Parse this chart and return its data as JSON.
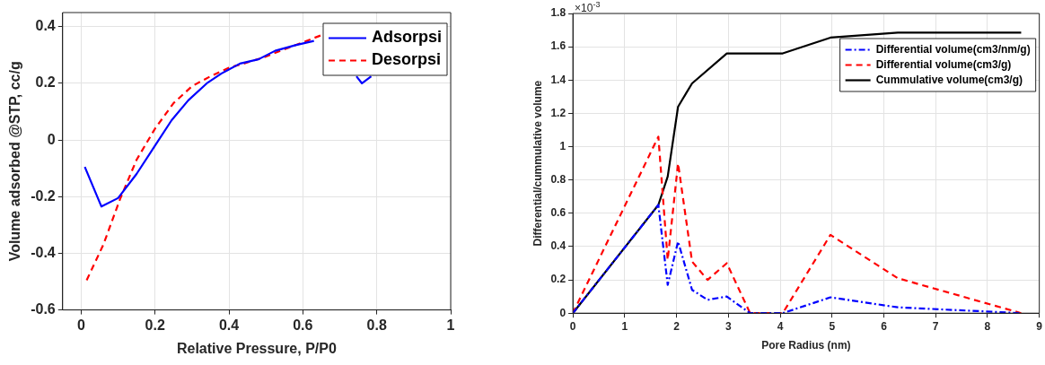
{
  "chart_data": [
    {
      "type": "line",
      "xlabel": "Relative Pressure, P/P0",
      "ylabel": "Volume adsorbed @STP, cc/g",
      "xlim": [
        -0.05,
        1
      ],
      "xticks": [
        0,
        0.2,
        0.4,
        0.6,
        0.8,
        1
      ],
      "ylim": [
        -0.6,
        0.45
      ],
      "yticks": [
        -0.6,
        -0.4,
        -0.2,
        0,
        0.2,
        0.4
      ],
      "grid": true,
      "legend": "top right",
      "marker": "none",
      "series": [
        {
          "name": "Adsorpsi",
          "color": "#0000ff",
          "line_style": "solid",
          "x": [
            0.01,
            0.055,
            0.1,
            0.15,
            0.2,
            0.245,
            0.29,
            0.34,
            0.38,
            0.43,
            0.48,
            0.525,
            0.58,
            0.63,
            0.7,
            0.745,
            0.76,
            0.785
          ],
          "values": [
            -0.095,
            -0.235,
            -0.205,
            -0.12,
            -0.02,
            0.07,
            0.14,
            0.2,
            0.235,
            0.27,
            0.285,
            0.315,
            0.335,
            0.35,
            null,
            0.225,
            0.2,
            0.225
          ]
        },
        {
          "name": "Desorpsi",
          "color": "#ff0000",
          "line_style": "dashed",
          "x": [
            0.015,
            0.06,
            0.105,
            0.15,
            0.2,
            0.25,
            0.3,
            0.35,
            0.4,
            0.44,
            0.49,
            0.54,
            0.6,
            0.65
          ],
          "values": [
            -0.495,
            -0.37,
            -0.21,
            -0.07,
            0.04,
            0.13,
            0.19,
            0.225,
            0.255,
            0.27,
            0.29,
            0.315,
            0.345,
            0.37
          ]
        }
      ]
    },
    {
      "type": "line",
      "xlabel": "Pore Radius (nm)",
      "ylabel": "Differential/cummulative volume",
      "annotations": [
        "×10$^{-3}$"
      ],
      "xlim": [
        0,
        9
      ],
      "xticks": [
        0,
        1,
        2,
        3,
        4,
        5,
        6,
        7,
        8,
        9
      ],
      "ylim": [
        0,
        1.8
      ],
      "yticks": [
        0,
        0.2,
        0.4,
        0.6,
        0.8,
        1,
        1.2,
        1.4,
        1.6,
        1.8
      ],
      "grid": true,
      "legend": "top right",
      "marker": "none",
      "series": [
        {
          "name": "Differential volume(cm3/nm/g)",
          "color": "#0000ff",
          "line_style": "dashdot",
          "x": [
            0,
            1.65,
            1.83,
            2.03,
            2.3,
            2.6,
            2.97,
            3.42,
            4.05,
            4.97,
            6.27,
            8.65
          ],
          "values": [
            0,
            0.65,
            0.17,
            0.43,
            0.14,
            0.08,
            0.1,
            0,
            0,
            0.095,
            0.035,
            0
          ]
        },
        {
          "name": "Differential volume(cm3/g)",
          "color": "#ff0000",
          "line_style": "dashed",
          "x": [
            0,
            1.65,
            1.83,
            2.03,
            2.3,
            2.6,
            2.97,
            3.42,
            4.05,
            4.97,
            6.27,
            8.65
          ],
          "values": [
            0,
            1.06,
            0.32,
            0.9,
            0.31,
            0.2,
            0.3,
            0,
            0,
            0.47,
            0.21,
            0
          ]
        },
        {
          "name": "Cummulative volume(cm3/g)",
          "color": "#000000",
          "line_style": "solid",
          "x": [
            0,
            1.65,
            1.83,
            2.03,
            2.3,
            2.97,
            4.05,
            4.97,
            6.27,
            8.65
          ],
          "values": [
            0,
            0.65,
            0.82,
            1.24,
            1.38,
            1.56,
            1.56,
            1.655,
            1.685,
            1.685
          ]
        }
      ]
    }
  ]
}
